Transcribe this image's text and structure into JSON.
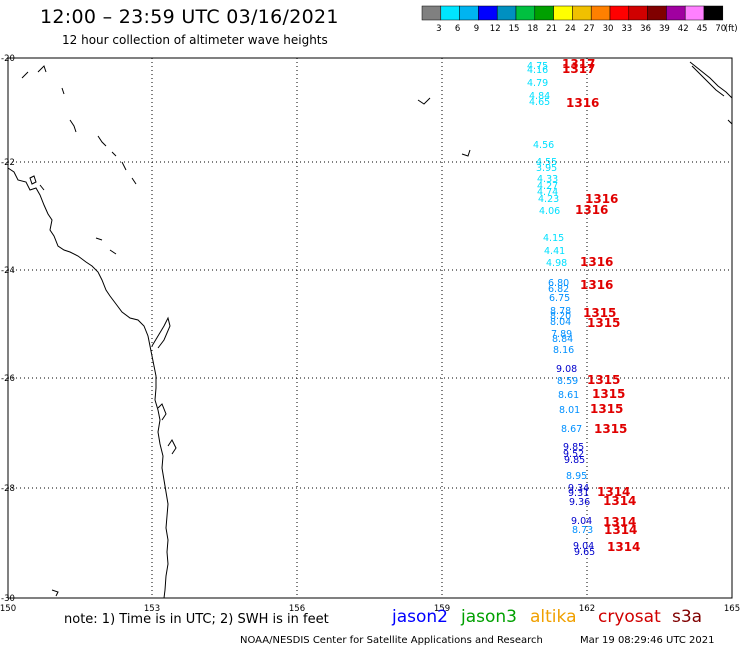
{
  "header": {
    "title": "12:00 – 23:59 UTC 03/16/2021",
    "subtitle": "12 hour collection of altimeter wave heights"
  },
  "colorbar": {
    "unit": "(ft)",
    "labels": [
      "3",
      "6",
      "9",
      "12",
      "15",
      "18",
      "21",
      "24",
      "27",
      "30",
      "33",
      "36",
      "39",
      "42",
      "45",
      "70"
    ],
    "colors": [
      "#808080",
      "#00e5ff",
      "#00b4f0",
      "#0000ff",
      "#0090c0",
      "#00c040",
      "#00a000",
      "#ffff00",
      "#f0c000",
      "#ff8000",
      "#ff0000",
      "#d00000",
      "#800000",
      "#a000a0",
      "#ff80ff",
      "#000000"
    ]
  },
  "axes": {
    "lon_labels": [
      "150",
      "153",
      "156",
      "159",
      "162",
      "165"
    ],
    "lat_labels": [
      "-20",
      "-22",
      "-24",
      "-26",
      "-28",
      "-30"
    ]
  },
  "footer": {
    "note": "note:  1) Time is in UTC;  2) SWH is in feet",
    "missions": [
      {
        "name": "jason2",
        "color": "#0000ff"
      },
      {
        "name": "jason3",
        "color": "#00a000"
      },
      {
        "name": "altika",
        "color": "#f0a000"
      },
      {
        "name": "cryosat",
        "color": "#d00000"
      },
      {
        "name": "s3a",
        "color": "#800000"
      }
    ],
    "credit": "NOAA/NESDIS Center for Satellite Applications and Research",
    "timestamp": "Mar 19 08:29:46 UTC 2021"
  },
  "readings": [
    {
      "v": "4.75",
      "c": "#00e0ff"
    },
    {
      "v": "4.16",
      "c": "#00e0ff"
    },
    {
      "v": "4.79",
      "c": "#00e0ff"
    },
    {
      "v": "4.84",
      "c": "#00e0ff"
    },
    {
      "v": "4.65",
      "c": "#00e0ff"
    },
    {
      "v": "4.56",
      "c": "#00e0ff"
    },
    {
      "v": "4.55",
      "c": "#00e0ff"
    },
    {
      "v": "3.95",
      "c": "#00e0ff"
    },
    {
      "v": "4.33",
      "c": "#00e0ff"
    },
    {
      "v": "4.27",
      "c": "#00e0ff"
    },
    {
      "v": "4.74",
      "c": "#00e0ff"
    },
    {
      "v": "4.23",
      "c": "#00e0ff"
    },
    {
      "v": "4.06",
      "c": "#00e0ff"
    },
    {
      "v": "4.15",
      "c": "#00e0ff"
    },
    {
      "v": "4.41",
      "c": "#00e0ff"
    },
    {
      "v": "4.98",
      "c": "#00e0ff"
    },
    {
      "v": "6.80",
      "c": "#0090ff"
    },
    {
      "v": "6.82",
      "c": "#0090ff"
    },
    {
      "v": "6.75",
      "c": "#0090ff"
    },
    {
      "v": "8.78",
      "c": "#0090ff"
    },
    {
      "v": "8.20",
      "c": "#0090ff"
    },
    {
      "v": "8.04",
      "c": "#0090ff"
    },
    {
      "v": "7.89",
      "c": "#0090ff"
    },
    {
      "v": "8.84",
      "c": "#0090ff"
    },
    {
      "v": "8.16",
      "c": "#0090ff"
    },
    {
      "v": "9.08",
      "c": "#0000cc"
    },
    {
      "v": "8.59",
      "c": "#0090ff"
    },
    {
      "v": "8.61",
      "c": "#0090ff"
    },
    {
      "v": "8.01",
      "c": "#0090ff"
    },
    {
      "v": "8.67",
      "c": "#0090ff"
    },
    {
      "v": "9.85",
      "c": "#0000cc"
    },
    {
      "v": "9.52",
      "c": "#0000cc"
    },
    {
      "v": "9.85",
      "c": "#0000cc"
    },
    {
      "v": "8.95",
      "c": "#0090ff"
    },
    {
      "v": "9.34",
      "c": "#0000cc"
    },
    {
      "v": "9.31",
      "c": "#0000cc"
    },
    {
      "v": "9.36",
      "c": "#0000cc"
    },
    {
      "v": "9.04",
      "c": "#0000cc"
    },
    {
      "v": "8.73",
      "c": "#0090ff"
    },
    {
      "v": "9.04",
      "c": "#0000cc"
    },
    {
      "v": "9.65",
      "c": "#0000cc"
    }
  ],
  "passes": [
    {
      "v": "1317"
    },
    {
      "v": "1317"
    },
    {
      "v": "1316"
    },
    {
      "v": "1316"
    },
    {
      "v": "1316"
    },
    {
      "v": "1316"
    },
    {
      "v": "1316"
    },
    {
      "v": "1315"
    },
    {
      "v": "1315"
    },
    {
      "v": "1315"
    },
    {
      "v": "1315"
    },
    {
      "v": "1315"
    },
    {
      "v": "1315"
    },
    {
      "v": "1314"
    },
    {
      "v": "1314"
    },
    {
      "v": "1314"
    },
    {
      "v": "1314"
    },
    {
      "v": "1314"
    }
  ]
}
